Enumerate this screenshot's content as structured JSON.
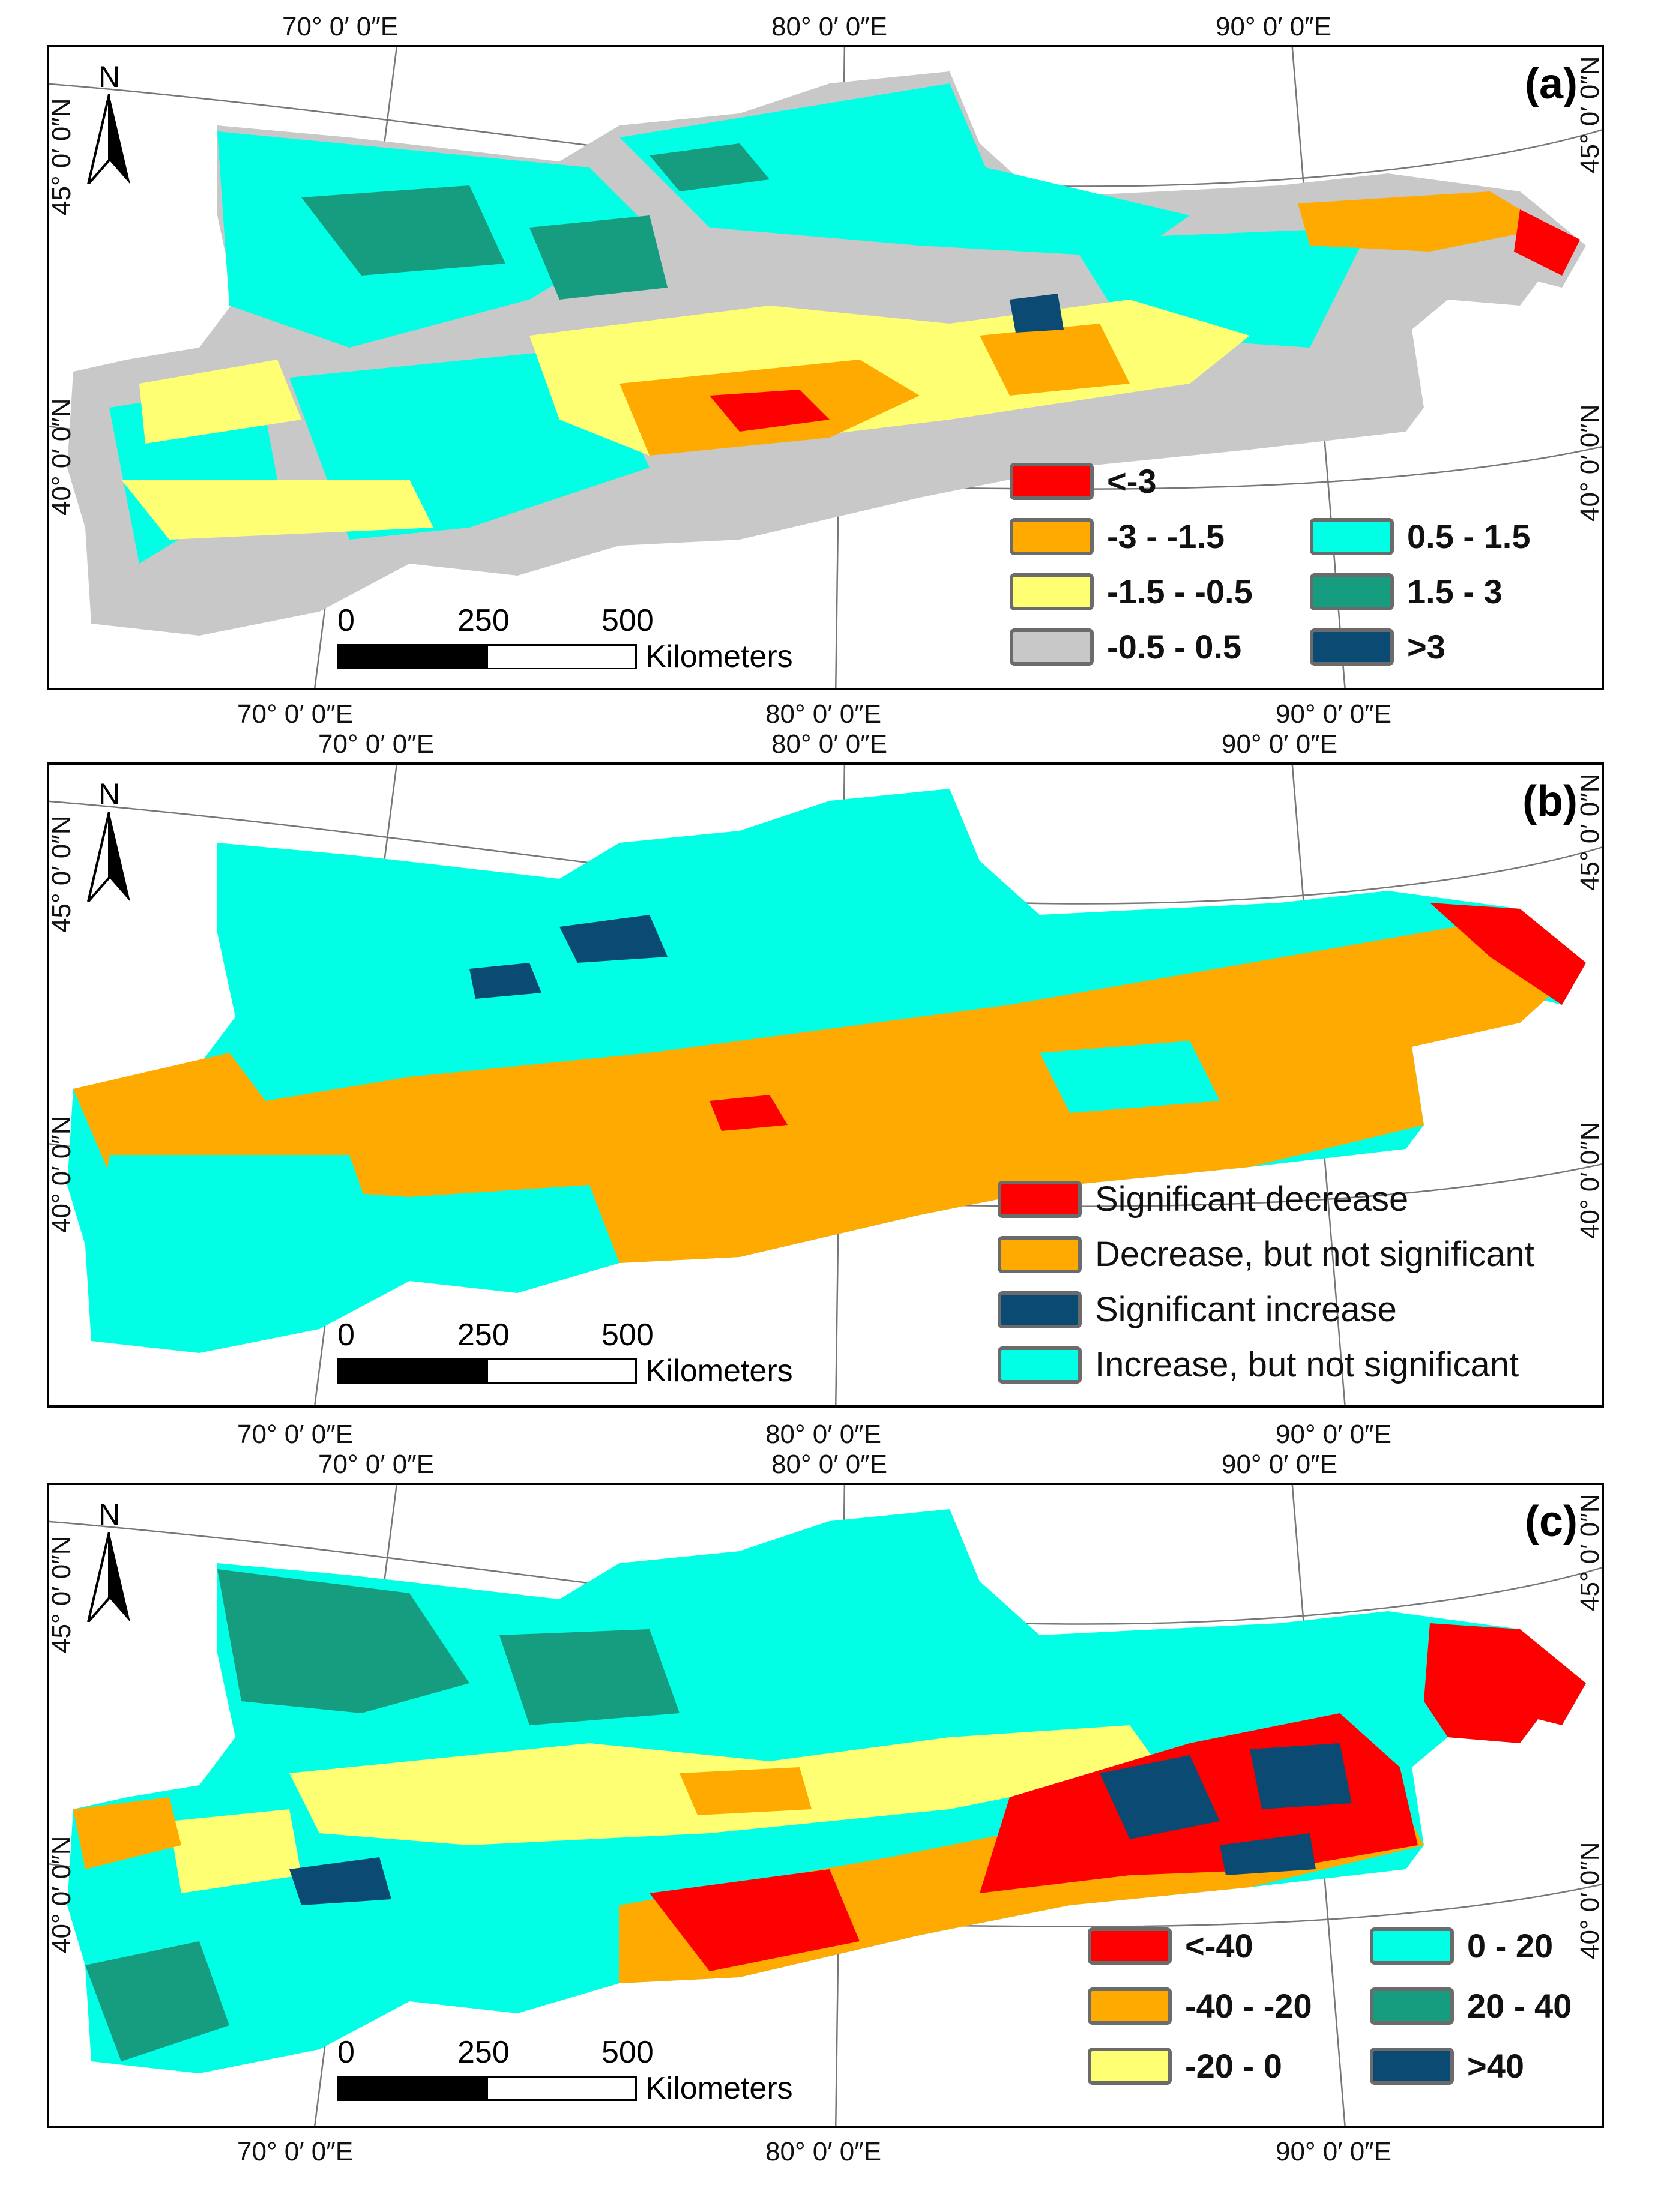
{
  "colors": {
    "red": "#ff0000",
    "orange": "#ffaa00",
    "yellow": "#ffff73",
    "gray": "#c8c8c8",
    "cyan": "#00ffe5",
    "green": "#169c7e",
    "navy": "#0a4a73"
  },
  "coords": {
    "lon70": "70° 0′ 0″E",
    "lon80": "80° 0′ 0″E",
    "lon90": "90° 0′ 0″E",
    "lat45": "45° 0′ 0″N",
    "lat40": "40° 0′ 0″N"
  },
  "north_label": "N",
  "scale": {
    "n0": "0",
    "n250": "250",
    "n500": "500",
    "unit": "Kilometers"
  },
  "panels": [
    {
      "label": "(a)",
      "legend": [
        {
          "text": "<-3",
          "color": "#ff0000"
        },
        {
          "text": "-3 - -1.5",
          "color": "#ffaa00"
        },
        {
          "text": "-1.5 - -0.5",
          "color": "#ffff73"
        },
        {
          "text": "-0.5 - 0.5",
          "color": "#c8c8c8"
        },
        {
          "text": "0.5 - 1.5",
          "color": "#00ffe5"
        },
        {
          "text": "1.5 - 3",
          "color": "#169c7e"
        },
        {
          "text": ">3",
          "color": "#0a4a73"
        }
      ]
    },
    {
      "label": "(b)",
      "legend": [
        {
          "text": "Significant decrease",
          "color": "#ff0000"
        },
        {
          "text": "Decrease, but not significant",
          "color": "#ffaa00"
        },
        {
          "text": "Significant increase",
          "color": "#0a4a73"
        },
        {
          "text": "Increase, but not significant",
          "color": "#00ffe5"
        }
      ]
    },
    {
      "label": "(c)",
      "legend": [
        {
          "text": "<-40",
          "color": "#ff0000"
        },
        {
          "text": "-40 - -20",
          "color": "#ffaa00"
        },
        {
          "text": "-20 - 0",
          "color": "#ffff73"
        },
        {
          "text": "0 - 20",
          "color": "#00ffe5"
        },
        {
          "text": "20 - 40",
          "color": "#169c7e"
        },
        {
          "text": ">40",
          "color": "#0a4a73"
        }
      ]
    }
  ]
}
